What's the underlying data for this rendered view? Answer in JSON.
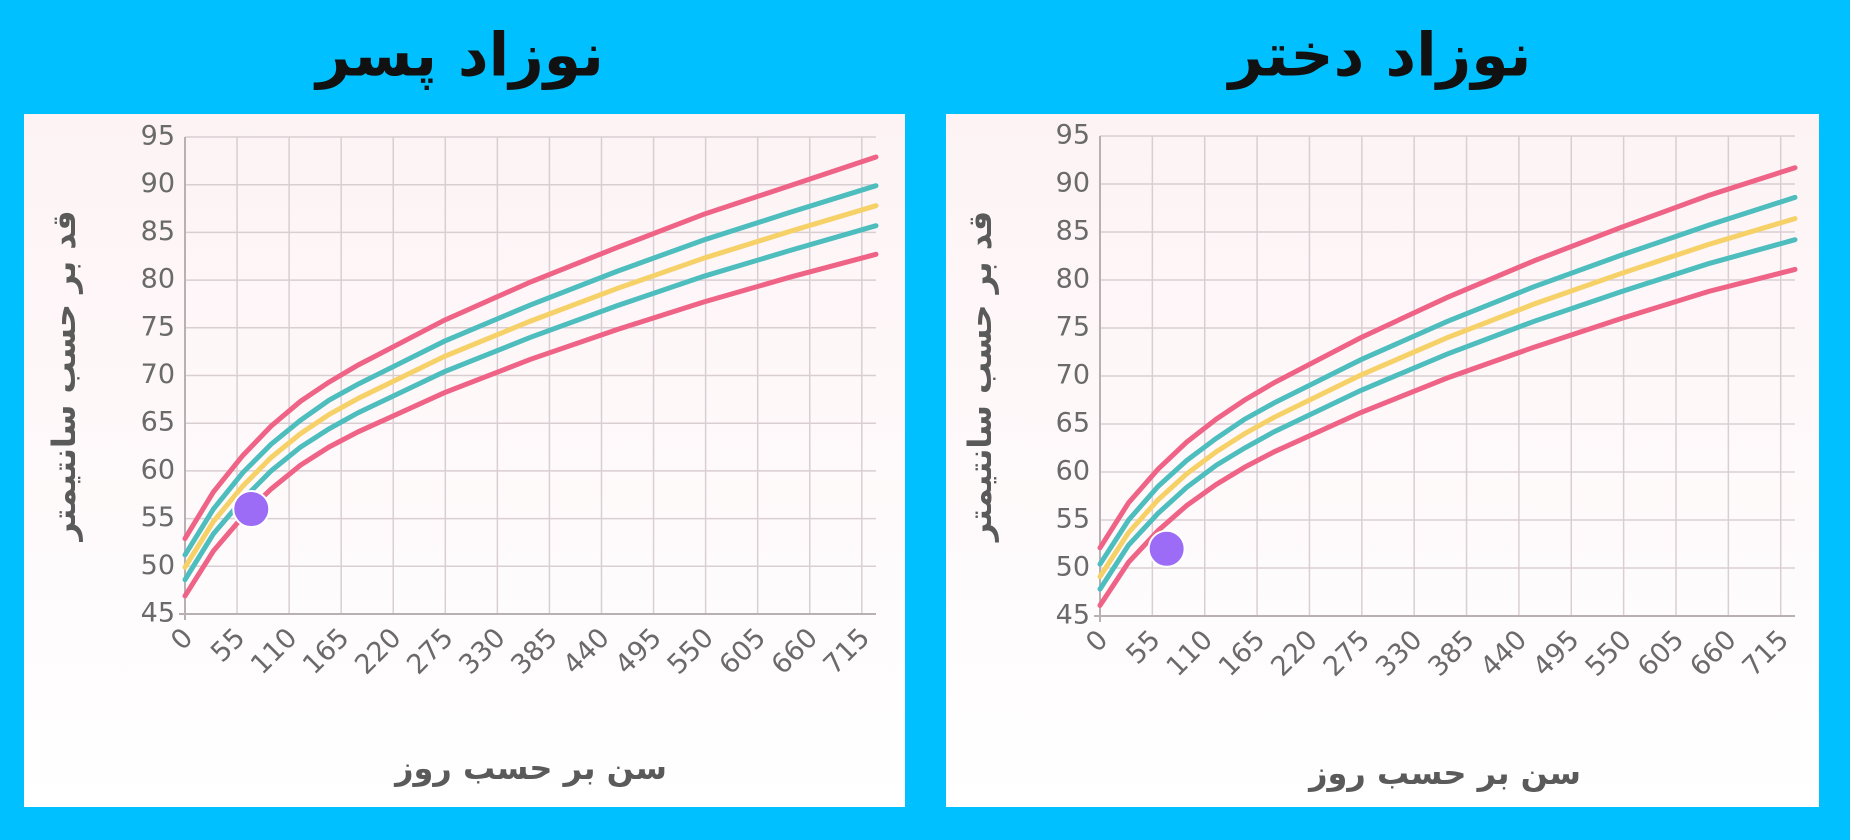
{
  "chart_data": [
    {
      "type": "line",
      "title": "نوزاد پسر",
      "x_label": "سن بر حسب روز",
      "y_label": "قد بر حسب سانتیمتر",
      "x": [
        0,
        30,
        61,
        91,
        122,
        152,
        183,
        274,
        365,
        456,
        548,
        639,
        730
      ],
      "xlim": [
        0,
        730
      ],
      "ylim": [
        45,
        95
      ],
      "xticks": [
        0,
        55,
        110,
        165,
        220,
        275,
        330,
        385,
        440,
        495,
        550,
        605,
        660,
        715
      ],
      "yticks": [
        45,
        50,
        55,
        60,
        65,
        70,
        75,
        80,
        85,
        90,
        95
      ],
      "grid": true,
      "series": [
        {
          "color": "#ee6386",
          "values": [
            52.9,
            57.8,
            61.6,
            64.7,
            67.3,
            69.3,
            71.1,
            75.8,
            79.8,
            83.4,
            86.9,
            89.9,
            92.9
          ]
        },
        {
          "color": "#4dbdbe",
          "values": [
            51.2,
            56.0,
            59.8,
            62.8,
            65.3,
            67.4,
            69.1,
            73.6,
            77.4,
            80.9,
            84.2,
            87.1,
            89.9
          ]
        },
        {
          "color": "#f6d167",
          "values": [
            49.9,
            54.7,
            58.4,
            61.4,
            63.9,
            65.9,
            67.6,
            72.0,
            75.7,
            79.1,
            82.3,
            85.1,
            87.8
          ]
        },
        {
          "color": "#4dbdbe",
          "values": [
            48.6,
            53.4,
            57.0,
            60.0,
            62.5,
            64.4,
            66.1,
            70.4,
            74.0,
            77.3,
            80.4,
            83.1,
            85.7
          ]
        },
        {
          "color": "#ee6386",
          "values": [
            46.9,
            51.6,
            55.2,
            58.1,
            60.6,
            62.5,
            64.1,
            68.2,
            71.7,
            74.8,
            77.7,
            80.3,
            82.7
          ]
        },
        {
          "type": "scatter",
          "color": "#9d6cf7",
          "x": [
            70
          ],
          "values": [
            56
          ]
        }
      ]
    },
    {
      "type": "line",
      "title": "نوزاد دختر",
      "x_label": "سن بر حسب روز",
      "y_label": "قد بر حسب سانتیمتر",
      "x": [
        0,
        30,
        61,
        91,
        122,
        152,
        183,
        274,
        365,
        456,
        548,
        639,
        730
      ],
      "xlim": [
        0,
        730
      ],
      "ylim": [
        45,
        95
      ],
      "xticks": [
        0,
        55,
        110,
        165,
        220,
        275,
        330,
        385,
        440,
        495,
        550,
        605,
        660,
        715
      ],
      "yticks": [
        45,
        50,
        55,
        60,
        65,
        70,
        75,
        80,
        85,
        90,
        95
      ],
      "grid": true,
      "series": [
        {
          "color": "#ee6386",
          "values": [
            52.1,
            56.8,
            60.3,
            63.1,
            65.5,
            67.5,
            69.3,
            74.0,
            78.2,
            82.0,
            85.5,
            88.8,
            91.7
          ]
        },
        {
          "color": "#4dbdbe",
          "values": [
            50.4,
            55.0,
            58.5,
            61.2,
            63.5,
            65.5,
            67.2,
            71.7,
            75.7,
            79.3,
            82.6,
            85.7,
            88.6
          ]
        },
        {
          "color": "#f6d167",
          "values": [
            49.1,
            53.7,
            57.1,
            59.8,
            62.1,
            64.0,
            65.7,
            70.1,
            74.0,
            77.5,
            80.7,
            83.7,
            86.4
          ]
        },
        {
          "color": "#4dbdbe",
          "values": [
            47.8,
            52.4,
            55.7,
            58.4,
            60.7,
            62.5,
            64.2,
            68.5,
            72.3,
            75.7,
            78.8,
            81.7,
            84.2
          ]
        },
        {
          "color": "#ee6386",
          "values": [
            46.1,
            50.6,
            53.9,
            56.5,
            58.7,
            60.5,
            62.1,
            66.2,
            69.8,
            73.0,
            76.0,
            78.8,
            81.1
          ]
        },
        {
          "type": "scatter",
          "color": "#9d6cf7",
          "x": [
            70
          ],
          "values": [
            52
          ]
        }
      ]
    }
  ]
}
